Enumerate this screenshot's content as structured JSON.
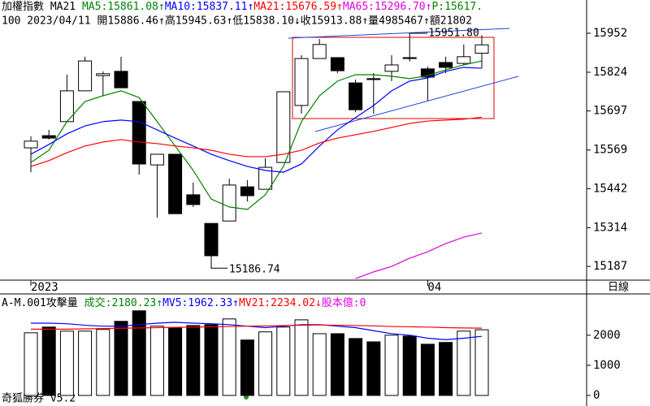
{
  "header": {
    "line1": [
      {
        "text": "加權指數 MA21 ",
        "color": "#000000"
      },
      {
        "text": "MA5:15861.08↑",
        "color": "#008000"
      },
      {
        "text": "MA10:15837.11↑",
        "color": "#0000ff"
      },
      {
        "text": "MA21:15676.59↑",
        "color": "#ff0000"
      },
      {
        "text": "MA65:15296.70↑",
        "color": "#e000e0"
      },
      {
        "text": "P:15617.",
        "color": "#008000"
      }
    ],
    "line2": "100 2023/04/11 開15886.46↑高15945.63↑低15838.10↓收15913.88↑量4985467↑額21802"
  },
  "period": "日線",
  "footer": "奇狐勝券 v5.2",
  "chart_data": [
    {
      "type": "candlestick",
      "categories": [
        "2023",
        null,
        null,
        null,
        null,
        null,
        null,
        null,
        null,
        null,
        null,
        null,
        null,
        null,
        null,
        null,
        null,
        null,
        null,
        null,
        null,
        null,
        "04",
        null,
        null,
        null
      ],
      "open": [
        15576,
        15616,
        15662,
        15763,
        15813,
        15827,
        15728,
        15520,
        15555,
        15422,
        15328,
        15336,
        15448,
        15440,
        15528,
        15715,
        15869,
        15872,
        15789,
        15803,
        15827,
        15872,
        15835,
        15856,
        15853,
        15886.46
      ],
      "high": [
        15614,
        15635,
        15816,
        15875,
        15827,
        15875,
        15728,
        15555,
        15555,
        15462,
        15328,
        15475,
        15470,
        15542,
        15760,
        15880,
        15933,
        15872,
        15800,
        15821,
        15880,
        15951.8,
        15843,
        15875,
        15915,
        15945.63
      ],
      "low": [
        15496,
        15603,
        15662,
        15763,
        15747,
        15773,
        15488,
        15347,
        15360,
        15382,
        15186.74,
        15336,
        15400,
        15440,
        15528,
        15688,
        15869,
        15821,
        15693,
        15688,
        15795,
        15859,
        15731,
        15821,
        15848,
        15838.1
      ],
      "close": [
        15598,
        15608,
        15763,
        15861,
        15819,
        15773,
        15523,
        15555,
        15360,
        15390,
        15222,
        15454,
        15419,
        15512,
        15760,
        15869,
        15915,
        15829,
        15701,
        15800,
        15848,
        15869,
        15808,
        15840,
        15875,
        15913.88
      ],
      "up_color": "#ffffff",
      "down_color": "#000000",
      "series": [
        {
          "name": "MA5",
          "color": "#008000",
          "values": [
            15528,
            15568,
            15662,
            15728,
            15747,
            15763,
            15741,
            15662,
            15582,
            15502,
            15408,
            15382,
            15374,
            15422,
            15515,
            15662,
            15747,
            15795,
            15816,
            15816,
            15811,
            15803,
            15813,
            15832,
            15848,
            15861.08
          ]
        },
        {
          "name": "MA10",
          "color": "#0000ff",
          "values": [
            15555,
            15587,
            15622,
            15648,
            15662,
            15667,
            15662,
            15635,
            15608,
            15582,
            15555,
            15534,
            15515,
            15502,
            15496,
            15523,
            15582,
            15635,
            15675,
            15715,
            15763,
            15795,
            15805,
            15827,
            15840,
            15837.11
          ]
        },
        {
          "name": "MA21",
          "color": "#ff0000",
          "values": [
            15515,
            15534,
            15560,
            15582,
            15595,
            15603,
            15595,
            15590,
            15582,
            15576,
            15568,
            15555,
            15547,
            15547,
            15555,
            15568,
            15592,
            15608,
            15619,
            15630,
            15643,
            15656,
            15664,
            15667,
            15670,
            15676.59
          ]
        },
        {
          "name": "MA65",
          "color": "#e000e0",
          "values": [
            null,
            null,
            null,
            null,
            null,
            null,
            null,
            null,
            null,
            null,
            null,
            null,
            null,
            null,
            null,
            null,
            null,
            null,
            15147,
            15169,
            15187,
            15214,
            15235,
            15262,
            15283,
            15296.7
          ]
        }
      ],
      "annotations": [
        "15951.80",
        "15186.74"
      ],
      "ylim": [
        15142,
        16061
      ],
      "yticks": [
        15952,
        15824,
        15697,
        15569,
        15442,
        15314,
        15187
      ]
    },
    {
      "type": "bar",
      "header": [
        {
          "text": "A-M.001攻擊量 ",
          "color": "#000000"
        },
        {
          "text": "成交:2180.23↑",
          "color": "#008000"
        },
        {
          "text": "MV5:1962.33↑",
          "color": "#0000ff"
        },
        {
          "text": "MV21:2234.02↓",
          "color": "#ff0000"
        },
        {
          "text": "股本億:0",
          "color": "#e000e0"
        }
      ],
      "values": [
        2080,
        2270,
        2135,
        2135,
        2190,
        2460,
        2810,
        2300,
        2240,
        2320,
        2350,
        2540,
        1840,
        2110,
        2270,
        2510,
        2050,
        2050,
        1890,
        1780,
        2000,
        1970,
        1700,
        1760,
        2135,
        2180.23
      ],
      "series": [
        {
          "name": "MV5",
          "color": "#0000ff",
          "values": [
            2400,
            2400,
            2380,
            2330,
            2300,
            2300,
            2350,
            2400,
            2430,
            2400,
            2380,
            2350,
            2300,
            2250,
            2300,
            2350,
            2350,
            2300,
            2250,
            2150,
            2050,
            2000,
            1900,
            1850,
            1900,
            1962.33
          ]
        },
        {
          "name": "MV21",
          "color": "#ff0000",
          "values": [
            2200,
            2200,
            2200,
            2210,
            2220,
            2230,
            2240,
            2250,
            2260,
            2270,
            2280,
            2290,
            2300,
            2310,
            2320,
            2330,
            2340,
            2330,
            2320,
            2310,
            2290,
            2280,
            2270,
            2250,
            2240,
            2234.02
          ]
        }
      ],
      "ylim": [
        0,
        3100
      ],
      "yticks": [
        0,
        1000,
        2000
      ]
    }
  ]
}
